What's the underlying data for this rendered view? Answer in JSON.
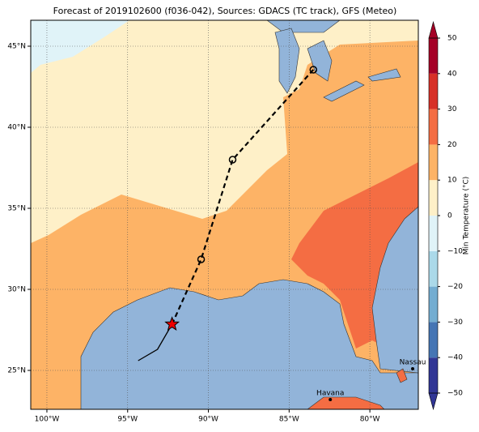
{
  "title": "Forecast of 2019102600 (f036-042), Sources: GDACS (TC track), GFS (Meteo)",
  "map": {
    "lonlim": [
      -101,
      -77
    ],
    "latlim": [
      22.6,
      46.6
    ],
    "lonticks": [
      {
        "value": -100,
        "label": "100°W"
      },
      {
        "value": -95,
        "label": "95°W"
      },
      {
        "value": -90,
        "label": "90°W"
      },
      {
        "value": -85,
        "label": "85°W"
      },
      {
        "value": -80,
        "label": "80°W"
      }
    ],
    "latticks": [
      {
        "value": 25,
        "label": "25°N"
      },
      {
        "value": 30,
        "label": "30°N"
      },
      {
        "value": 35,
        "label": "35°N"
      },
      {
        "value": 40,
        "label": "40°N"
      },
      {
        "value": 45,
        "label": "45°N"
      }
    ],
    "past_track": {
      "lon": [
        -94.35,
        -93.15,
        -92.25
      ],
      "lat": [
        25.6,
        26.3,
        27.85
      ]
    },
    "forecast_track": {
      "lon": [
        -92.25,
        -90.45,
        -88.5,
        -83.5
      ],
      "lat": [
        27.85,
        31.85,
        38.0,
        43.55
      ]
    },
    "cities": [
      {
        "name": "Havana",
        "lon": -82.45,
        "lat": 23.2
      },
      {
        "name": "Nassau",
        "lon": -77.35,
        "lat": 25.1
      }
    ]
  },
  "colorbar": {
    "label": "Min Temperature (°C)",
    "lim": [
      -50,
      50
    ],
    "ticks": [
      {
        "value": -50,
        "label": "−50"
      },
      {
        "value": -40,
        "label": "−40"
      },
      {
        "value": -30,
        "label": "−30"
      },
      {
        "value": -20,
        "label": "−20"
      },
      {
        "value": -10,
        "label": "−10"
      },
      0,
      10,
      20,
      30,
      40,
      50
    ],
    "colors": [
      "#313695",
      "#4575b4",
      "#74add1",
      "#abd9e9",
      "#e0f3f8",
      "#fef0c8",
      "#fdb366",
      "#f46d43",
      "#d73027",
      "#a50026"
    ]
  }
}
